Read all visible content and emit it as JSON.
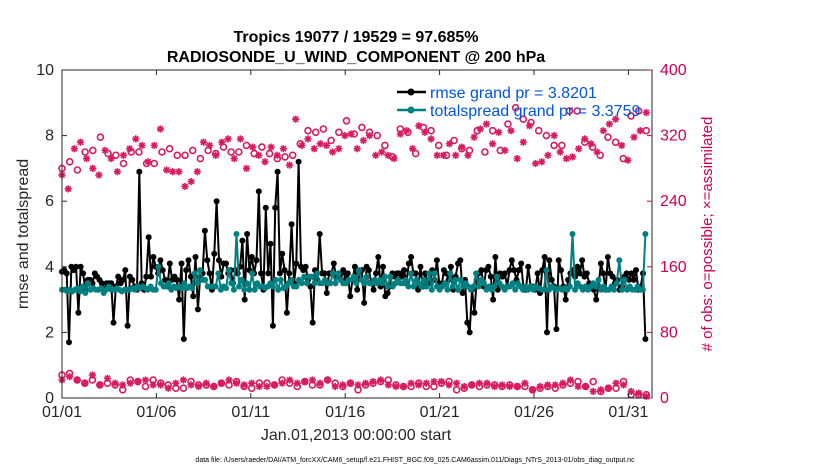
{
  "chart_data": {
    "type": "line",
    "title": "Tropics 19077 / 19529 = 97.685%",
    "subtitle": "RADIOSONDE_U_WIND_COMPONENT @ 200 hPa",
    "xlabel": "Jan.01,2013 00:00:00 start",
    "ylabel": "rmse and totalspread",
    "ylabel_right": "# of obs: o=possible; ×=assimilated",
    "footnote": "data file: /Users/raeder/DAI/ATM_forcXX/CAM6_setup/f.e21.FHIST_BGC.f09_025.CAM6assim.011/Diags_NTrS_2013-01/obs_diag_output.nc",
    "xlim": [
      1,
      32.25
    ],
    "ylim": [
      0,
      10
    ],
    "ylim_right": [
      0,
      400
    ],
    "x_ticks": [
      1,
      6,
      11,
      16,
      21,
      26,
      31
    ],
    "x_tick_labels": [
      "01/01",
      "01/06",
      "01/11",
      "01/16",
      "01/21",
      "01/26",
      "01/31"
    ],
    "y_ticks": [
      0,
      2,
      4,
      6,
      8,
      10
    ],
    "y_tick_labels": [
      "0",
      "2",
      "4",
      "6",
      "8",
      "10"
    ],
    "y_ticks_right": [
      0,
      80,
      160,
      240,
      320,
      400
    ],
    "y_tick_labels_right": [
      "0",
      "80",
      "160",
      "240",
      "320",
      "400"
    ],
    "colors": {
      "rmse": "#000000",
      "spread": "#008080",
      "obs": "#d81b60",
      "axis": "#262626",
      "legend_text": "#0055dd"
    },
    "series": [
      {
        "name": "rmse grand pr = 3.8201",
        "axis": "left",
        "color": "#000000",
        "values": [
          3.85,
          3.9,
          3.8,
          1.7,
          4.0,
          3.9,
          4.0,
          2.6,
          4.0,
          3.8,
          3.3,
          3.6,
          3.6,
          3.5,
          3.8,
          3.7,
          3.6,
          3.5,
          3.3,
          3.5,
          3.5,
          3.5,
          2.3,
          3.4,
          3.7,
          3.5,
          3.6,
          3.9,
          2.2,
          3.7,
          3.6,
          3.4,
          3.3,
          6.9,
          3.5,
          3.3,
          3.7,
          4.9,
          3.7,
          4.3,
          4.0,
          3.8,
          4.2,
          3.9,
          3.6,
          3.4,
          4.1,
          3.6,
          3.7,
          3.6,
          3.0,
          4.1,
          1.8,
          3.9,
          4.2,
          3.7,
          3.1,
          4.3,
          2.7,
          3.7,
          3.8,
          5.1,
          4.2,
          3.8,
          3.3,
          4.4,
          6.0,
          4.2,
          3.7,
          4.1,
          4.1,
          3.8,
          3.9,
          3.5,
          3.9,
          3.8,
          4.0,
          4.8,
          3.0,
          5.0,
          3.9,
          4.3,
          3.8,
          4.2,
          6.3,
          3.8,
          3.3,
          5.8,
          3.8,
          4.7,
          2.2,
          5.8,
          6.9,
          3.8,
          4.4,
          3.9,
          2.6,
          3.8,
          5.3,
          3.5,
          4.1,
          7.2,
          4.0,
          3.9,
          4.0,
          3.6,
          3.4,
          2.3,
          3.9,
          3.6,
          5.0,
          3.8,
          3.8,
          3.2,
          3.8,
          3.8,
          4.1,
          3.7,
          3.8,
          3.6,
          3.9,
          3.6,
          3.8,
          3.1,
          3.6,
          4.0,
          3.3,
          3.8,
          3.9,
          2.9,
          4.0,
          3.9,
          3.5,
          3.3,
          3.8,
          4.3,
          3.4,
          4.0,
          3.1,
          3.2,
          3.4,
          3.8,
          3.7,
          3.8,
          3.8,
          3.7,
          3.9,
          3.5,
          4.1,
          4.3,
          3.8,
          3.8,
          3.3,
          4.0,
          3.4,
          3.8,
          3.5,
          3.5,
          3.9,
          3.6,
          4.2,
          3.5,
          3.4,
          3.9,
          3.8,
          3.6,
          4.0,
          3.3,
          3.7,
          4.1,
          4.2,
          3.2,
          3.6,
          2.3,
          2.0,
          3.3,
          2.6,
          3.6,
          3.8,
          3.9,
          3.4,
          3.9,
          4.0,
          3.7,
          3.0,
          4.3,
          3.3,
          3.8,
          3.7,
          3.8,
          3.4,
          3.9,
          4.2,
          3.9,
          3.6,
          3.9,
          4.1,
          3.3,
          3.3,
          4.0,
          3.4,
          3.4,
          3.3,
          3.8,
          3.2,
          3.9,
          4.3,
          2.0,
          4.2,
          3.6,
          3.4,
          2.1,
          4.2,
          3.9,
          3.4,
          3.0,
          3.6,
          3.8,
          3.9,
          3.7,
          4.0,
          3.8,
          4.2,
          3.7,
          3.8,
          3.5,
          3.4,
          3.3,
          3.0,
          3.4,
          4.1,
          3.8,
          3.3,
          4.3,
          3.8,
          3.7,
          3.5,
          3.6,
          3.3,
          3.4,
          3.7,
          3.8,
          3.6,
          3.8,
          3.6,
          3.9,
          3.3,
          3.4,
          3.8,
          1.8
        ]
      },
      {
        "name": "totalspread grand pr = 3.3759",
        "axis": "left",
        "color": "#008080",
        "values": [
          3.3,
          3.3,
          3.25,
          3.3,
          3.25,
          3.3,
          3.35,
          3.25,
          3.4,
          3.2,
          3.5,
          3.3,
          3.35,
          3.3,
          3.3,
          3.35,
          3.2,
          3.3,
          3.4,
          3.3,
          3.3,
          3.35,
          3.3,
          3.25,
          3.3,
          3.3,
          3.3,
          3.35,
          3.3,
          3.4,
          3.35,
          3.4,
          3.35,
          3.3,
          3.4,
          3.3,
          3.3,
          4.0,
          3.5,
          3.4,
          3.4,
          3.5,
          3.3,
          3.4,
          3.35,
          3.4,
          3.35,
          3.5,
          3.35,
          3.4,
          3.35,
          3.8,
          3.5,
          3.9,
          3.6,
          3.6,
          3.4,
          3.4,
          3.4,
          3.4,
          3.8,
          3.3,
          3.4,
          3.35,
          3.9,
          3.5,
          3.3,
          5.0,
          3.4,
          3.6,
          3.3,
          3.5,
          3.3,
          3.8,
          3.3,
          3.5,
          3.4,
          3.4,
          3.35,
          3.4,
          3.5,
          3.4,
          3.6,
          3.3,
          3.6,
          3.35,
          3.4,
          3.5,
          3.6,
          3.4,
          3.4,
          3.6,
          3.5,
          3.7,
          3.5,
          3.7,
          3.7,
          3.5,
          3.8,
          3.5,
          3.5,
          3.6,
          3.5,
          3.5,
          3.8,
          3.5,
          3.8,
          3.6,
          3.5,
          3.5,
          3.6,
          3.6,
          3.7,
          3.5,
          3.9,
          3.6,
          3.5,
          3.7,
          3.5,
          3.5,
          3.6,
          3.5,
          3.6,
          3.5,
          3.7,
          3.4,
          3.7,
          3.4,
          3.5,
          3.6,
          3.5,
          3.5,
          3.6,
          3.4,
          3.8,
          3.4,
          3.6,
          3.5,
          3.4,
          3.6,
          3.4,
          3.8,
          3.3,
          3.8,
          3.4,
          3.3,
          3.4,
          3.5,
          3.3,
          3.8,
          3.4,
          3.6,
          3.3,
          3.6,
          3.4,
          3.5,
          3.4,
          3.3,
          3.4,
          3.8,
          3.4,
          3.6,
          3.5,
          3.3,
          3.4,
          3.3,
          3.4,
          3.7,
          3.5,
          3.4,
          3.3,
          3.4,
          3.4,
          3.5,
          3.3,
          3.5,
          3.4,
          3.3,
          3.4,
          3.3,
          3.4,
          3.3,
          3.4,
          3.35,
          3.3,
          3.3,
          3.9,
          3.3,
          3.4,
          3.35,
          3.3,
          3.35,
          3.3,
          3.35,
          3.3,
          3.4,
          5.0,
          3.3,
          3.5,
          3.4,
          3.3,
          3.4,
          3.3,
          3.4,
          3.5,
          3.4,
          3.6,
          3.3,
          3.4,
          3.3,
          3.3,
          3.4,
          3.3,
          3.5,
          4.2,
          3.3,
          3.6,
          3.3,
          3.4,
          3.3,
          3.3,
          3.4,
          3.3,
          3.3,
          5.0
        ]
      },
      {
        "name": "# of obs possible",
        "axis": "right",
        "marker": "o",
        "color": "#d81b60",
        "values": [
          280,
          288,
          278,
          300,
          302,
          318,
          298,
          296,
          286,
          300,
          300,
          286,
          286,
          300,
          304,
          296,
          296,
          302,
          292,
          302,
          298,
          306,
          300,
          300,
          308,
          298,
          306,
          298,
          292,
          294,
          296,
          310,
          326,
          324,
          328,
          314,
          324,
          338,
          322,
          330,
          324,
          320,
          308,
          294,
          328,
          324,
          298,
          330,
          326,
          308,
          296,
          314,
          304,
          302,
          326,
          300,
          326,
          302,
          334,
          354,
          340,
          336,
          326,
          320,
          308,
          308,
          350,
          350,
          312,
          306,
          296,
          318,
          312,
          292,
          344,
          350,
          326
        ]
      },
      {
        "name": "# of obs assimilated",
        "axis": "right",
        "marker": "x",
        "color": "#d81b60",
        "values": [
          272,
          255,
          304,
          312,
          292,
          280,
          272,
          302,
          292,
          276,
          296,
          304,
          316,
          308,
          288,
          308,
          328,
          278,
          276,
          276,
          258,
          264,
          276,
          312,
          308,
          296,
          312,
          316,
          292,
          316,
          280,
          306,
          296,
          288,
          306,
          296,
          304,
          284,
          340,
          308,
          316,
          304,
          310,
          308,
          300,
          304,
          320,
          322,
          304,
          314,
          320,
          296,
          300,
          296,
          292,
          322,
          326,
          304,
          332,
          324,
          316,
          296,
          296,
          310,
          296,
          306,
          296,
          318,
          328,
          334,
          310,
          324,
          302,
          326,
          292,
          312,
          332,
          286,
          288,
          296,
          320,
          300,
          292,
          294,
          304,
          316,
          310,
          300,
          326,
          334,
          340,
          308,
          290,
          318,
          326,
          348
        ]
      },
      {
        "name": "# of obs possible (low)",
        "axis": "right",
        "marker": "o",
        "color": "#d81b60",
        "values": [
          28,
          30,
          22,
          18,
          22,
          16,
          18,
          16,
          10,
          22,
          20,
          14,
          22,
          18,
          16,
          12,
          12,
          20,
          16,
          16,
          14,
          18,
          16,
          20,
          14,
          12,
          18,
          18,
          16,
          22,
          18,
          14,
          20,
          16,
          16,
          22,
          18,
          14,
          18,
          10,
          16,
          18,
          20,
          22,
          16,
          14,
          14,
          18,
          14,
          14,
          18,
          20,
          10,
          12,
          16,
          14,
          16,
          16,
          14,
          16,
          14,
          14,
          10,
          12,
          14,
          12,
          16,
          18,
          20,
          14,
          20,
          8,
          12,
          12,
          20,
          4,
          4,
          4
        ]
      },
      {
        "name": "# of obs assimilated (low)",
        "axis": "right",
        "marker": "x",
        "color": "#d81b60",
        "values": [
          22,
          26,
          22,
          18,
          28,
          16,
          24,
          18,
          16,
          18,
          20,
          22,
          16,
          16,
          12,
          18,
          22,
          16,
          14,
          18,
          14,
          18,
          22,
          18,
          16,
          18,
          14,
          14,
          16,
          18,
          22,
          18,
          20,
          22,
          18,
          22,
          14,
          16,
          18,
          16,
          18,
          20,
          22,
          16,
          14,
          14,
          18,
          16,
          18,
          20,
          20,
          16,
          18,
          14,
          16,
          18,
          18,
          14,
          16,
          14,
          14,
          18,
          10,
          14,
          16,
          16,
          18,
          22,
          14,
          14,
          8,
          10,
          12,
          18,
          16,
          8,
          6,
          2
        ]
      }
    ]
  }
}
